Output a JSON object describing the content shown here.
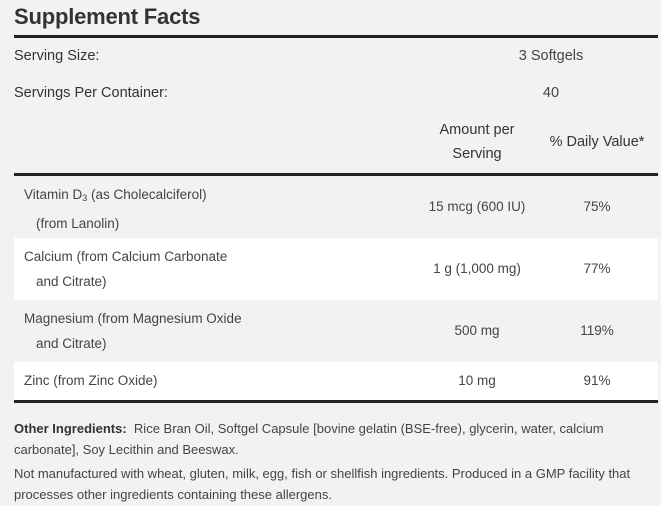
{
  "title": "Supplement Facts",
  "serving_size": {
    "label": "Serving Size:",
    "value": "3 Softgels"
  },
  "servings_per_container": {
    "label": "Servings Per Container:",
    "value": "40"
  },
  "columns": {
    "amount_line1": "Amount per",
    "amount_line2": "Serving",
    "daily_value": "% Daily Value*"
  },
  "nutrients": [
    {
      "name_pre": "Vitamin D",
      "name_sub": "3",
      "name_post": " (as Cholecalciferol)",
      "line2": "(from Lanolin)",
      "amount": "15 mcg (600 IU)",
      "dv": "75%"
    },
    {
      "name_pre": "Calcium (from Calcium Carbonate",
      "line2": "and Citrate)",
      "amount": "1 g (1,000 mg)",
      "dv": "77%"
    },
    {
      "name_pre": "Magnesium (from Magnesium Oxide",
      "line2": "and Citrate)",
      "amount": "500 mg",
      "dv": "119%"
    },
    {
      "name_pre": "Zinc (from Zinc Oxide)",
      "amount": "10 mg",
      "dv": "91%"
    }
  ],
  "other_ingredients": {
    "label": "Other Ingredients:",
    "text": "Rice Bran Oil, Softgel Capsule [bovine gelatin (BSE-free), glycerin, water, calcium carbonate], Soy Lecithin and Beeswax."
  },
  "allergen_note": "Not manufactured with wheat, gluten, milk, egg, fish or shellfish ingredients. Produced in a GMP facility that processes other ingredients containing these allergens."
}
